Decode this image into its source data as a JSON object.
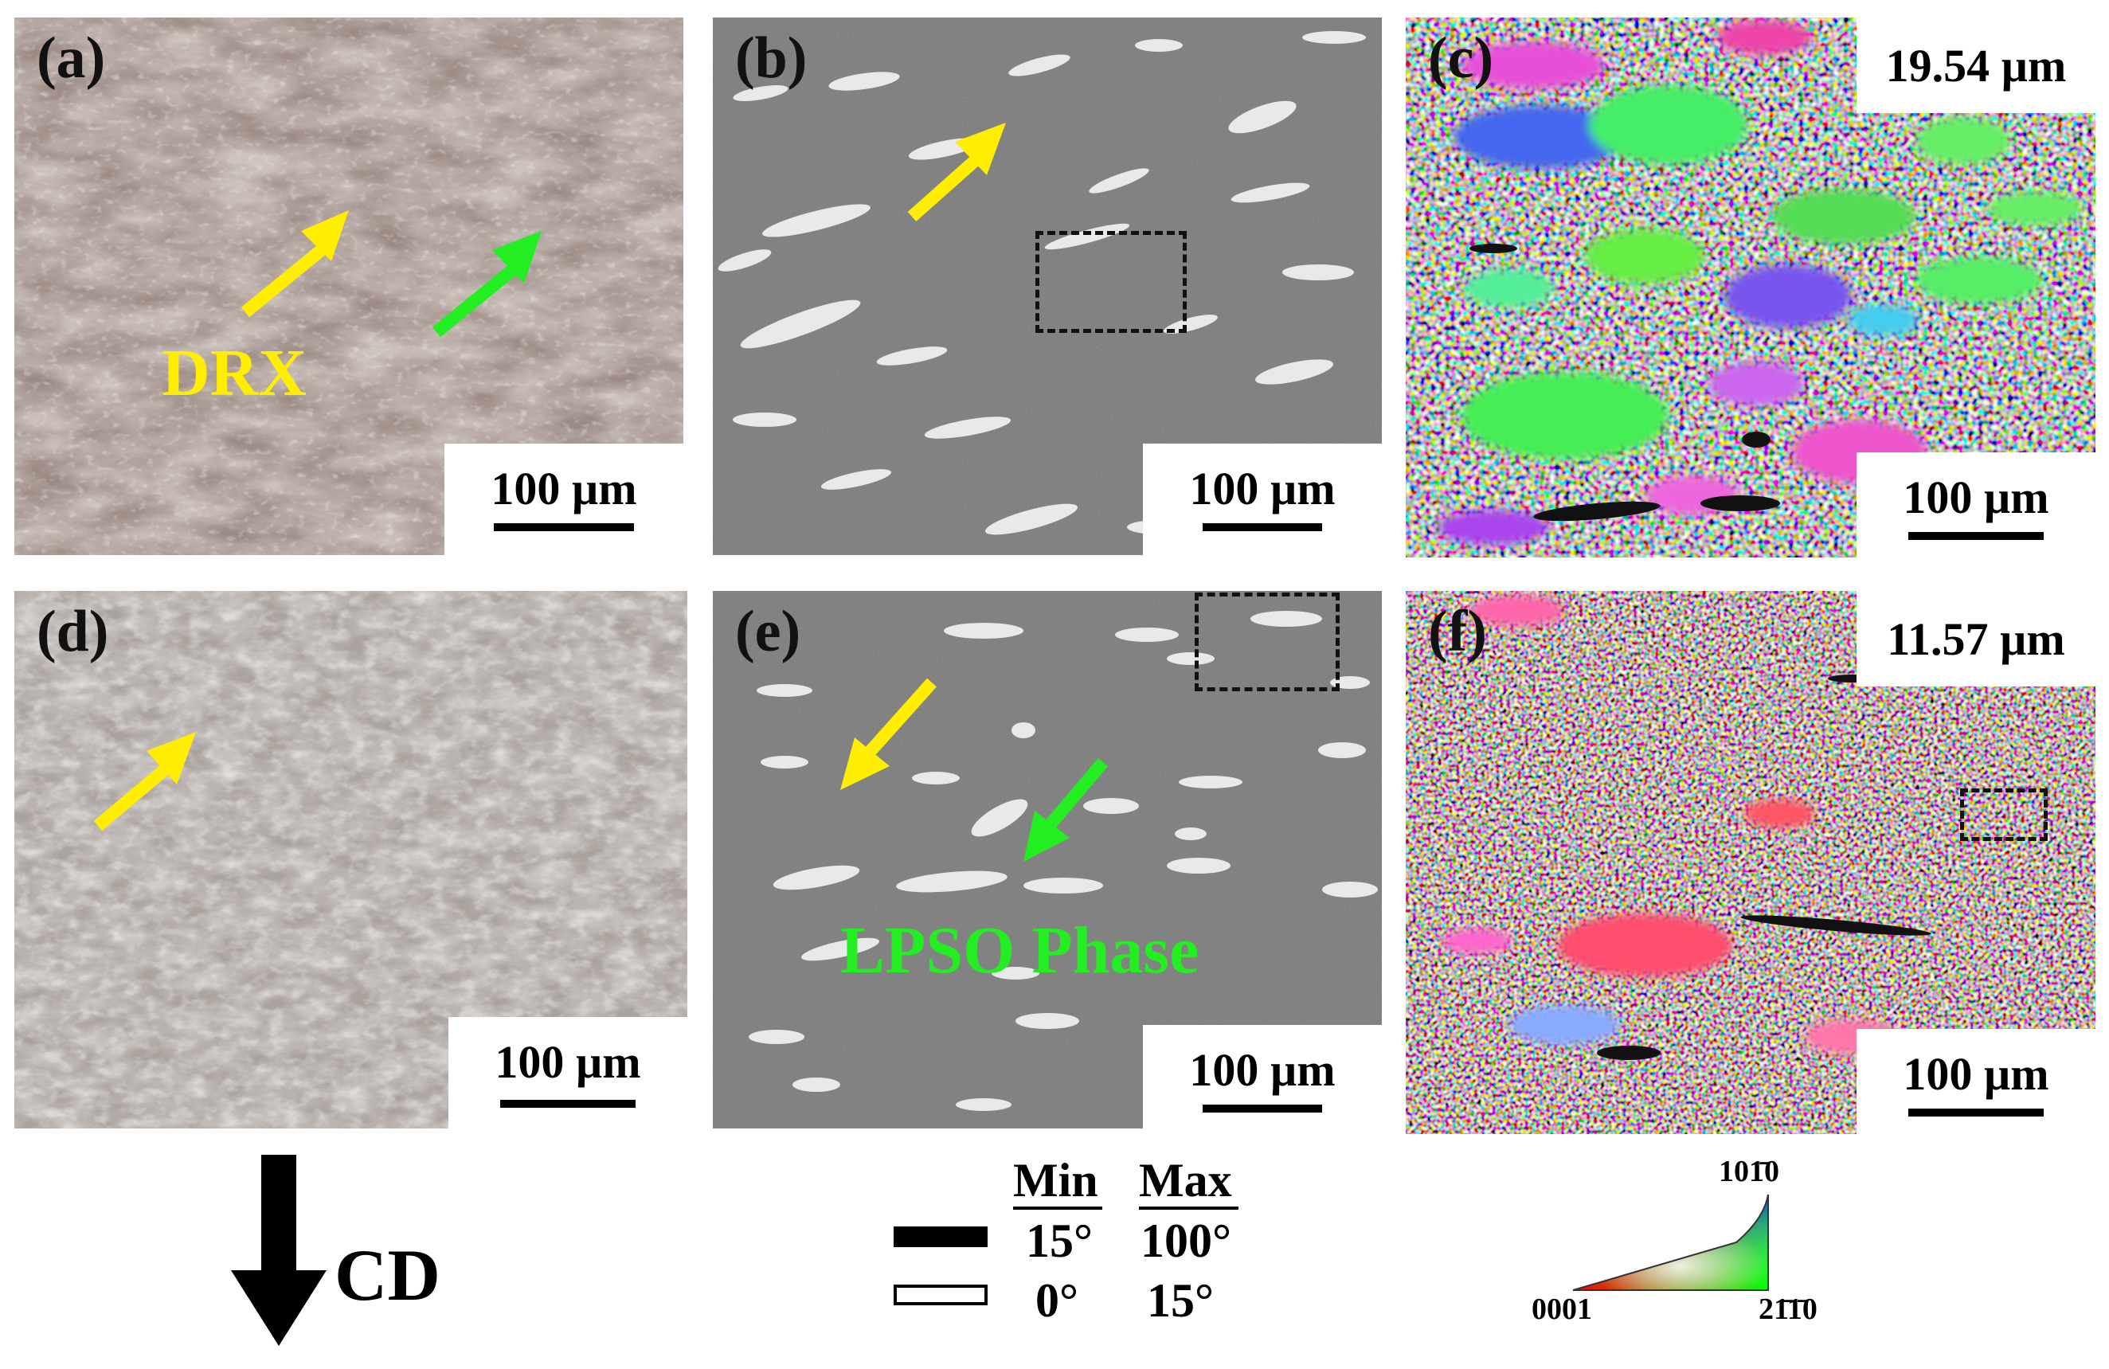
{
  "panels": {
    "a": {
      "label": "(a)",
      "scale": "100 µm",
      "annotation": "DRX"
    },
    "b": {
      "label": "(b)",
      "scale": "100 µm"
    },
    "c": {
      "label": "(c)",
      "scale": "100 µm",
      "grain_size": "19.54 µm"
    },
    "d": {
      "label": "(d)",
      "scale": "100 µm"
    },
    "e": {
      "label": "(e)",
      "scale": "100 µm",
      "annotation": "LPSO Phase"
    },
    "f": {
      "label": "(f)",
      "scale": "100 µm",
      "grain_size": "11.57 µm"
    }
  },
  "direction": {
    "label": "CD",
    "icon": "down-arrow-icon"
  },
  "boundary_legend": {
    "min_header": "Min",
    "max_header": "Max",
    "rows": [
      {
        "min": "15°",
        "max": "100°",
        "style": "thick-black"
      },
      {
        "min": "0°",
        "max": "15°",
        "style": "hollow"
      }
    ]
  },
  "ipf_key": {
    "top": "101̄0",
    "left": "0001",
    "right": "21̄1̄0"
  },
  "colors": {
    "arrow_yellow": "#ffee00",
    "arrow_green": "#22ee22",
    "sem_gray": "#7a7a7a"
  }
}
